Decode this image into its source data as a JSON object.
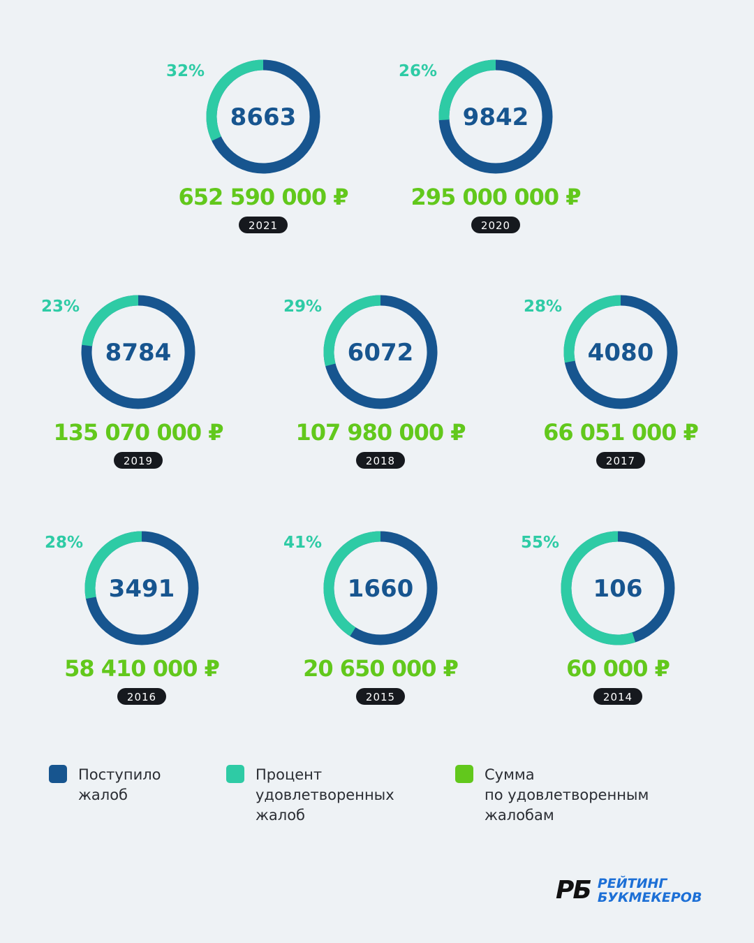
{
  "colors": {
    "background": "#eef2f5",
    "complaints": "#17558f",
    "satisfied_percent": "#2ecba5",
    "satisfied_sum": "#62c81c",
    "year_badge": "#16191e",
    "logo_accent": "#1c6fd6"
  },
  "chart_data": {
    "type": "donut",
    "items": [
      {
        "year": "2021",
        "complaints": 8663,
        "complaints_label": "8663",
        "satisfied_percent": 32,
        "percent_label": "32%",
        "amount_label": "652 590 000 ₽"
      },
      {
        "year": "2020",
        "complaints": 9842,
        "complaints_label": "9842",
        "satisfied_percent": 26,
        "percent_label": "26%",
        "amount_label": "295 000 000 ₽"
      },
      {
        "year": "2019",
        "complaints": 8784,
        "complaints_label": "8784",
        "satisfied_percent": 23,
        "percent_label": "23%",
        "amount_label": "135 070 000 ₽"
      },
      {
        "year": "2018",
        "complaints": 6072,
        "complaints_label": "6072",
        "satisfied_percent": 29,
        "percent_label": "29%",
        "amount_label": "107 980 000 ₽"
      },
      {
        "year": "2017",
        "complaints": 4080,
        "complaints_label": "4080",
        "satisfied_percent": 28,
        "percent_label": "28%",
        "amount_label": "66 051 000 ₽"
      },
      {
        "year": "2016",
        "complaints": 3491,
        "complaints_label": "3491",
        "satisfied_percent": 28,
        "percent_label": "28%",
        "amount_label": "58 410 000 ₽"
      },
      {
        "year": "2015",
        "complaints": 1660,
        "complaints_label": "1660",
        "satisfied_percent": 41,
        "percent_label": "41%",
        "amount_label": "20 650 000 ₽"
      },
      {
        "year": "2014",
        "complaints": 106,
        "complaints_label": "106",
        "satisfied_percent": 55,
        "percent_label": "55%",
        "amount_label": "60 000 ₽"
      }
    ],
    "legend": [
      {
        "label": "Поступило\nжалоб",
        "color": "#17558f"
      },
      {
        "label": "Процент\nудовлетворенных\nжалоб",
        "color": "#2ecba5"
      },
      {
        "label": "Сумма\nпо удовлетворенным\nжалобам",
        "color": "#62c81c"
      }
    ]
  },
  "logo": {
    "mark": "РБ",
    "text": "РЕЙТИНГ\nБУКМЕКЕРОВ"
  }
}
